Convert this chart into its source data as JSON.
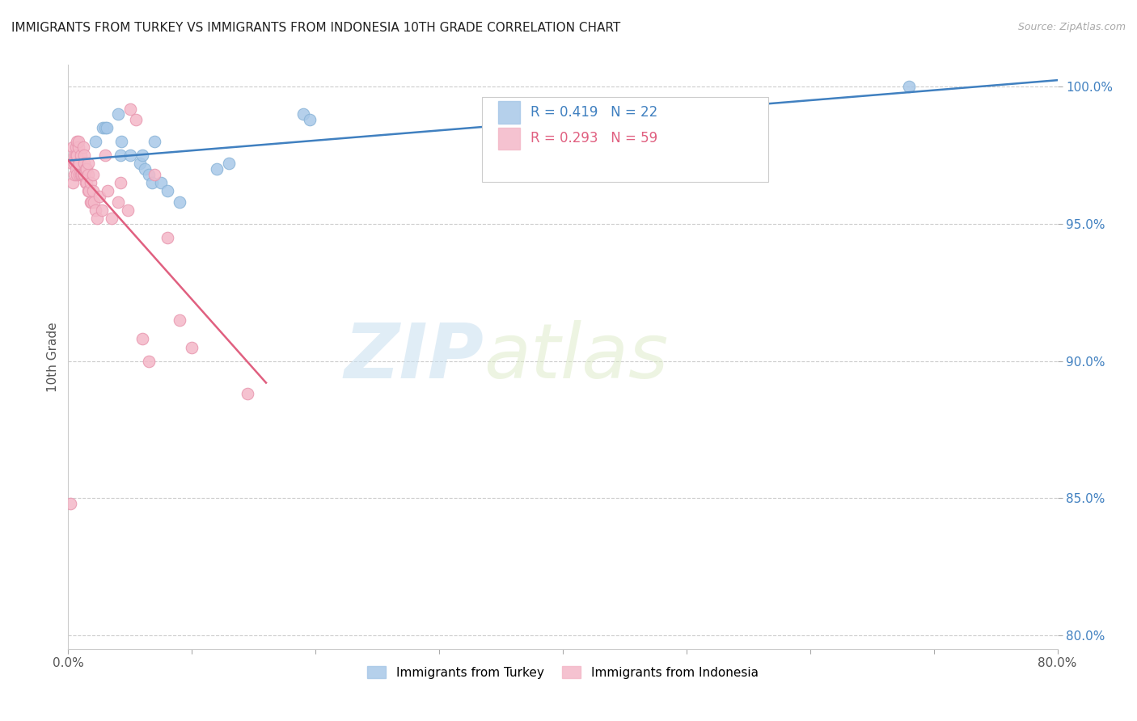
{
  "title": "IMMIGRANTS FROM TURKEY VS IMMIGRANTS FROM INDONESIA 10TH GRADE CORRELATION CHART",
  "source": "Source: ZipAtlas.com",
  "ylabel": "10th Grade",
  "watermark_zip": "ZIP",
  "watermark_atlas": "atlas",
  "legend_turkey": "Immigrants from Turkey",
  "legend_indonesia": "Immigrants from Indonesia",
  "R_turkey": 0.419,
  "N_turkey": 22,
  "R_indonesia": 0.293,
  "N_indonesia": 59,
  "xlim": [
    0.0,
    0.8
  ],
  "ylim": [
    0.795,
    1.008
  ],
  "x_ticks": [
    0.0,
    0.1,
    0.2,
    0.3,
    0.4,
    0.5,
    0.6,
    0.7,
    0.8
  ],
  "x_tick_labels": [
    "0.0%",
    "",
    "",
    "",
    "",
    "",
    "",
    "",
    "80.0%"
  ],
  "y_ticks": [
    0.8,
    0.85,
    0.9,
    0.95,
    1.0
  ],
  "y_tick_labels": [
    "80.0%",
    "85.0%",
    "90.0%",
    "95.0%",
    "100.0%"
  ],
  "grid_color": "#cccccc",
  "color_turkey": "#a8c8e8",
  "color_indonesia": "#f4b8c8",
  "color_turkey_line": "#4080c0",
  "color_indonesia_line": "#e06080",
  "turkey_x": [
    0.022,
    0.028,
    0.03,
    0.031,
    0.04,
    0.042,
    0.043,
    0.05,
    0.058,
    0.06,
    0.062,
    0.065,
    0.068,
    0.07,
    0.075,
    0.08,
    0.09,
    0.12,
    0.13,
    0.19,
    0.195,
    0.68
  ],
  "turkey_y": [
    0.98,
    0.985,
    0.985,
    0.985,
    0.99,
    0.975,
    0.98,
    0.975,
    0.972,
    0.975,
    0.97,
    0.968,
    0.965,
    0.98,
    0.965,
    0.962,
    0.958,
    0.97,
    0.972,
    0.99,
    0.988,
    1.0
  ],
  "indonesia_x": [
    0.002,
    0.003,
    0.004,
    0.004,
    0.005,
    0.005,
    0.005,
    0.006,
    0.006,
    0.006,
    0.007,
    0.007,
    0.007,
    0.008,
    0.008,
    0.008,
    0.009,
    0.009,
    0.01,
    0.01,
    0.011,
    0.012,
    0.012,
    0.013,
    0.013,
    0.013,
    0.014,
    0.014,
    0.015,
    0.015,
    0.016,
    0.016,
    0.016,
    0.017,
    0.018,
    0.018,
    0.019,
    0.02,
    0.02,
    0.021,
    0.022,
    0.023,
    0.025,
    0.027,
    0.03,
    0.032,
    0.035,
    0.04,
    0.042,
    0.048,
    0.05,
    0.055,
    0.06,
    0.065,
    0.07,
    0.08,
    0.09,
    0.1,
    0.145
  ],
  "indonesia_y": [
    0.848,
    0.972,
    0.978,
    0.965,
    0.968,
    0.972,
    0.975,
    0.975,
    0.97,
    0.978,
    0.98,
    0.968,
    0.975,
    0.978,
    0.972,
    0.98,
    0.972,
    0.968,
    0.975,
    0.968,
    0.968,
    0.978,
    0.968,
    0.975,
    0.972,
    0.968,
    0.97,
    0.965,
    0.97,
    0.965,
    0.962,
    0.968,
    0.972,
    0.962,
    0.958,
    0.965,
    0.958,
    0.968,
    0.962,
    0.958,
    0.955,
    0.952,
    0.96,
    0.955,
    0.975,
    0.962,
    0.952,
    0.958,
    0.965,
    0.955,
    0.992,
    0.988,
    0.908,
    0.9,
    0.968,
    0.945,
    0.915,
    0.905,
    0.888
  ],
  "turkey_line_x": [
    0.0,
    0.8
  ],
  "indonesia_line_x": [
    0.0,
    0.16
  ]
}
